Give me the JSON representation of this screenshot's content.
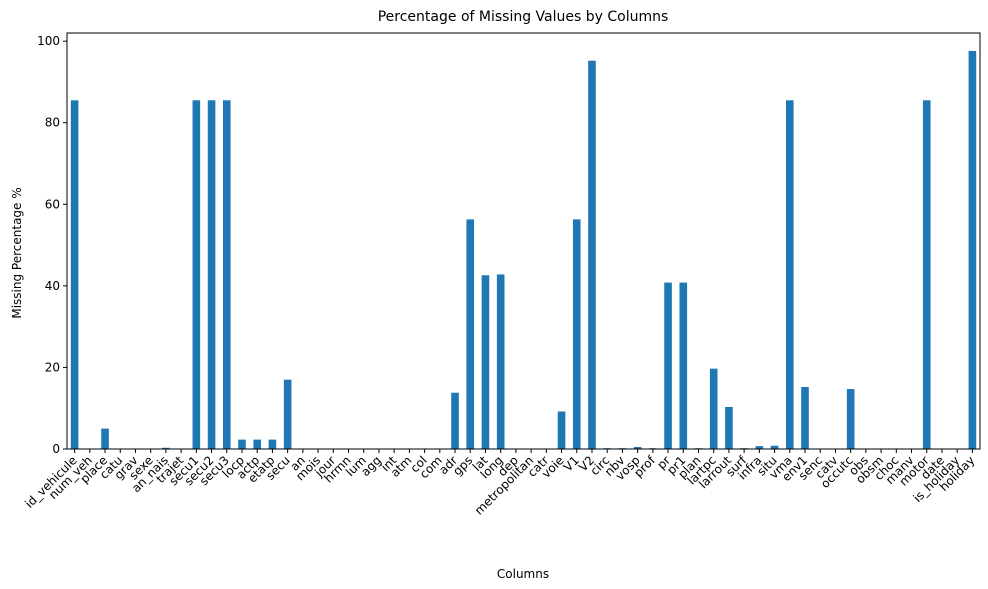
{
  "chart_data": {
    "type": "bar",
    "title": "Percentage of Missing Values by Columns",
    "xlabel": "Columns",
    "ylabel": "Missing Percentage %",
    "ylim": [
      0,
      102
    ],
    "yticks": [
      0,
      20,
      40,
      60,
      80,
      100
    ],
    "grid": false,
    "bar_color": "#1f77b4",
    "categories": [
      "id_vehicule",
      "num_veh",
      "place",
      "catu",
      "grav",
      "sexe",
      "an_nais",
      "trajet",
      "secu1",
      "secu2",
      "secu3",
      "locp",
      "actp",
      "etatp",
      "secu",
      "an",
      "mois",
      "jour",
      "hrmn",
      "lum",
      "agg",
      "int",
      "atm",
      "col",
      "com",
      "adr",
      "gps",
      "lat",
      "long",
      "dep",
      "metropolitan",
      "catr",
      "voie",
      "V1",
      "V2",
      "circ",
      "nbv",
      "vosp",
      "prof",
      "pr",
      "pr1",
      "plan",
      "lartpc",
      "larrout",
      "surf",
      "infra",
      "situ",
      "vma",
      "env1",
      "senc",
      "catv",
      "occutc",
      "obs",
      "obsm",
      "choc",
      "manv",
      "motor",
      "date",
      "is_holiday",
      "holiday"
    ],
    "values": [
      85.5,
      0,
      5.0,
      0,
      0,
      0,
      0.3,
      0,
      85.5,
      85.5,
      85.5,
      2.3,
      2.3,
      2.3,
      17.0,
      0,
      0,
      0,
      0,
      0,
      0,
      0,
      0,
      0,
      0,
      13.8,
      56.3,
      42.6,
      42.8,
      0,
      0,
      0,
      9.2,
      56.3,
      95.2,
      0.2,
      0.2,
      0.5,
      0.2,
      40.8,
      40.8,
      0.2,
      19.7,
      10.3,
      0.2,
      0.7,
      0.8,
      85.5,
      15.2,
      0,
      0,
      14.7,
      0,
      0,
      0,
      0,
      85.5,
      0,
      0,
      97.6
    ]
  }
}
